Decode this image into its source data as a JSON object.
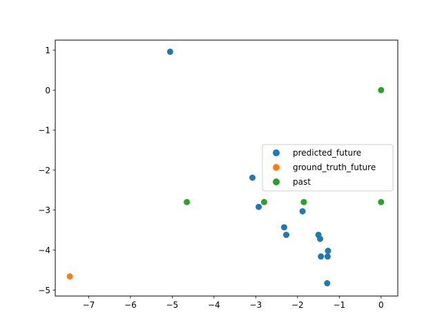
{
  "chart_data": {
    "type": "scatter",
    "title": "",
    "xlabel": "",
    "ylabel": "",
    "xlim": [
      -7.8,
      0.4
    ],
    "ylim": [
      -5.15,
      1.25
    ],
    "xticks": [
      -7,
      -6,
      -5,
      -4,
      -3,
      -2,
      -1,
      0
    ],
    "yticks": [
      1,
      0,
      -1,
      -2,
      -3,
      -4,
      -5
    ],
    "grid": false,
    "legend_position": "center-right",
    "series": [
      {
        "name": "predicted_future",
        "color": "#1f77b4",
        "points": [
          {
            "x": -5.05,
            "y": 0.96
          },
          {
            "x": -3.08,
            "y": -2.19
          },
          {
            "x": -2.93,
            "y": -2.92
          },
          {
            "x": -1.88,
            "y": -3.03
          },
          {
            "x": -2.32,
            "y": -3.43
          },
          {
            "x": -2.27,
            "y": -3.62
          },
          {
            "x": -1.5,
            "y": -3.62
          },
          {
            "x": -1.46,
            "y": -3.72
          },
          {
            "x": -1.27,
            "y": -4.02
          },
          {
            "x": -1.44,
            "y": -4.16
          },
          {
            "x": -1.28,
            "y": -4.16
          },
          {
            "x": -1.29,
            "y": -4.83
          }
        ]
      },
      {
        "name": "ground_truth_future",
        "color": "#ff7f0e",
        "points": [
          {
            "x": -7.45,
            "y": -4.66
          }
        ]
      },
      {
        "name": "past",
        "color": "#2ca02c",
        "points": [
          {
            "x": 0.0,
            "y": 0.0
          },
          {
            "x": 0.0,
            "y": -2.8
          },
          {
            "x": -1.85,
            "y": -2.8
          },
          {
            "x": -2.8,
            "y": -2.8
          },
          {
            "x": -4.65,
            "y": -2.8
          }
        ]
      }
    ]
  }
}
